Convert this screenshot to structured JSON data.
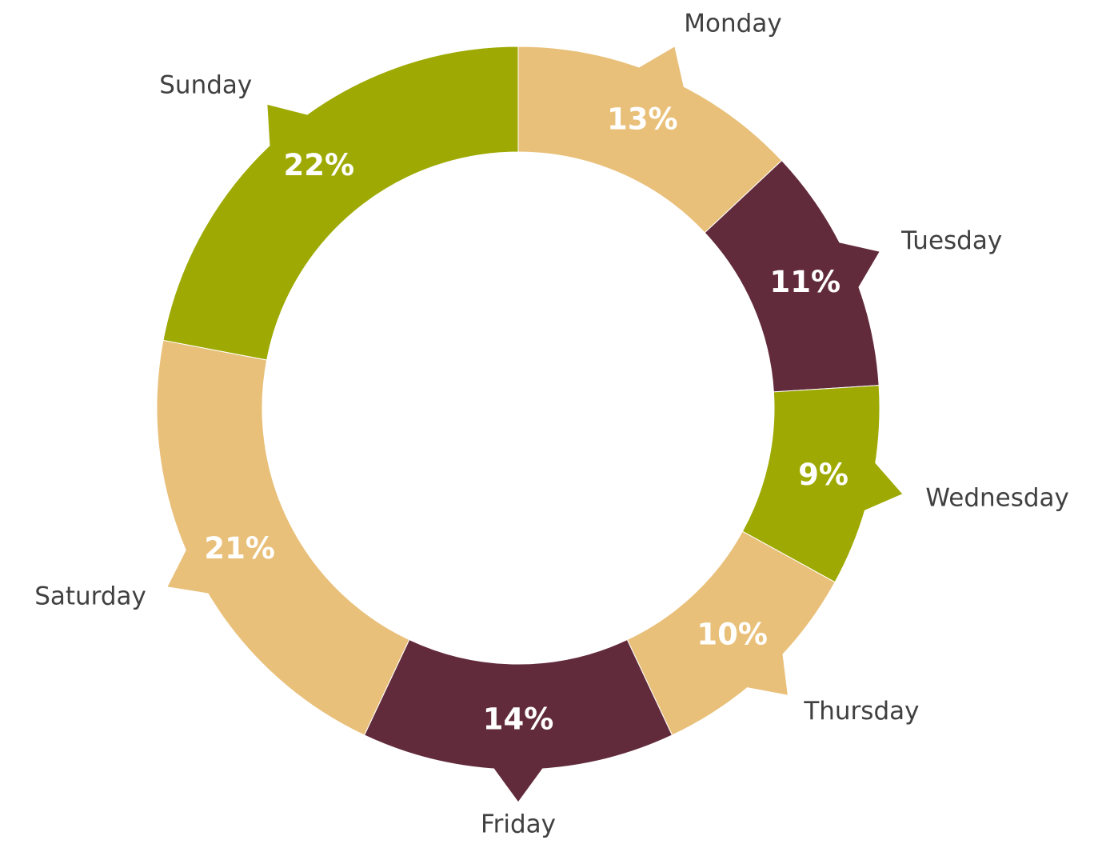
{
  "chart_data": {
    "type": "donut",
    "categories": [
      "Monday",
      "Tuesday",
      "Wednesday",
      "Thursday",
      "Friday",
      "Saturday",
      "Sunday"
    ],
    "values": [
      13,
      11,
      9,
      10,
      14,
      21,
      22
    ],
    "value_labels": [
      "13%",
      "11%",
      "9%",
      "10%",
      "14%",
      "21%",
      "22%"
    ],
    "colors": [
      "#e9c07a",
      "#622b3c",
      "#9eaa03",
      "#e9c07a",
      "#622b3c",
      "#e9c07a",
      "#9eaa03"
    ]
  }
}
